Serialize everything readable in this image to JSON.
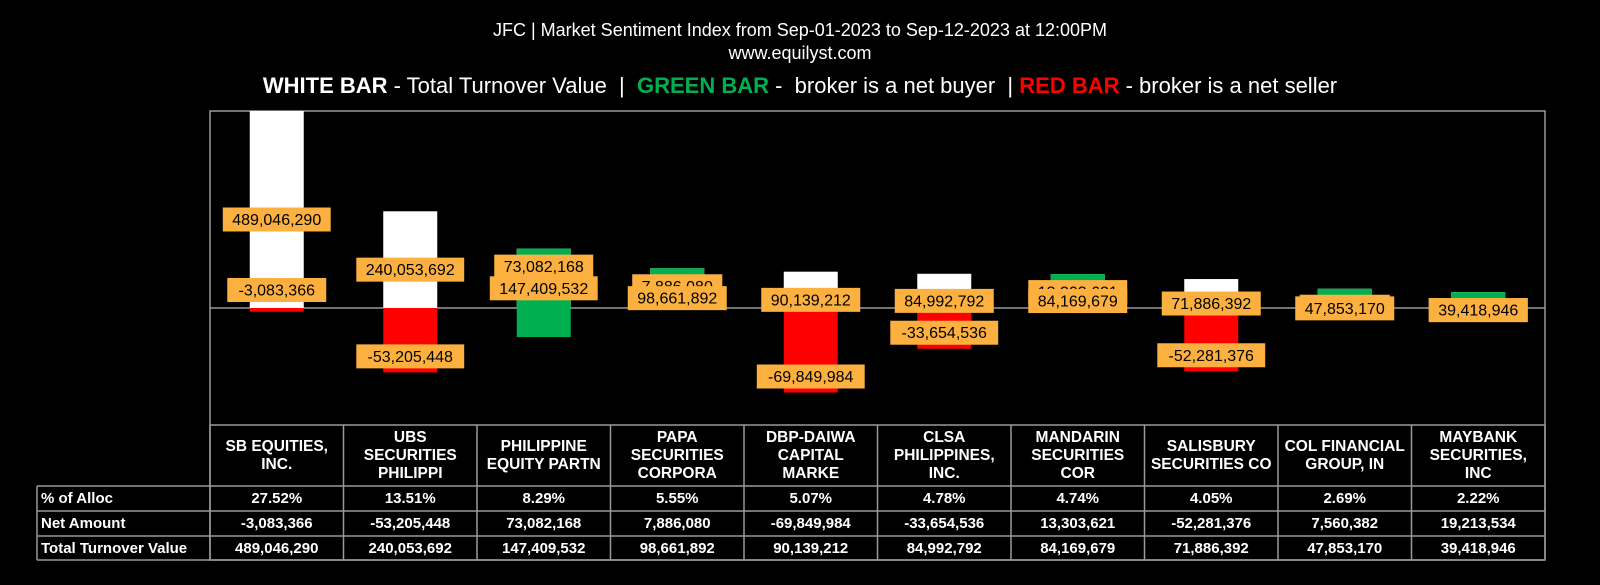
{
  "header": {
    "title_line1": "JFC | Market Sentiment Index from Sep-01-2023 to Sep-12-2023 at 12:00PM",
    "title_line2": "www.equilyst.com"
  },
  "legend": {
    "white_key": "WHITE BAR",
    "white_desc": " - Total Turnover Value  |  ",
    "green_key": "GREEN BAR",
    "green_desc": " -  broker is a net buyer  | ",
    "red_key": "RED BAR",
    "red_desc": " - broker is a net seller",
    "colors": {
      "white": "#ffffff",
      "green": "#00b050",
      "red": "#ff0000"
    }
  },
  "table": {
    "row_labels": [
      "% of Alloc",
      "Net Amount",
      "Total Turnover Value"
    ]
  },
  "chart_data": {
    "type": "bar",
    "categories": [
      [
        "SB EQUITIES,",
        "INC."
      ],
      [
        "UBS",
        "SECURITIES",
        "PHILIPPI"
      ],
      [
        "PHILIPPINE",
        "EQUITY PARTN"
      ],
      [
        "PAPA",
        "SECURITIES",
        "CORPORA"
      ],
      [
        "DBP-DAIWA",
        "CAPITAL",
        "MARKE"
      ],
      [
        "CLSA",
        "PHILIPPINES,",
        "INC."
      ],
      [
        "MANDARIN",
        "SECURITIES",
        "COR"
      ],
      [
        "SALISBURY",
        "SECURITIES CO"
      ],
      [
        "COL FINANCIAL",
        "GROUP, IN"
      ],
      [
        "MAYBANK",
        "SECURITIES,",
        "INC"
      ]
    ],
    "series": [
      {
        "name": "Total Turnover Value",
        "values": [
          489046290,
          240053692,
          147409532,
          98661892,
          90139212,
          84992792,
          84169679,
          71886392,
          47853170,
          39418946
        ],
        "labels": [
          "489,046,290",
          "240,053,692",
          "147,409,532",
          "98,661,892",
          "90,139,212",
          "84,992,792",
          "84,169,679",
          "71,886,392",
          "47,853,170",
          "39,418,946"
        ]
      },
      {
        "name": "Net Amount",
        "values": [
          -3083366,
          -53205448,
          73082168,
          7886080,
          -69849984,
          -33654536,
          13303621,
          -52281376,
          7560382,
          19213534
        ],
        "labels": [
          "-3,083,366",
          "-53,205,448",
          "73,082,168",
          "7,886,080",
          "-69,849,984",
          "-33,654,536",
          "13,303,621",
          "-52,281,376",
          "7,560,382",
          "19,213,534"
        ]
      },
      {
        "name": "% of Alloc",
        "labels": [
          "27.52%",
          "13.51%",
          "8.29%",
          "5.55%",
          "5.07%",
          "4.78%",
          "4.74%",
          "4.05%",
          "2.69%",
          "2.22%"
        ]
      }
    ],
    "colors": {
      "turnover": "#ffffff",
      "buyer": "#00b050",
      "seller": "#ff0000",
      "label_bg": "#fbb040"
    }
  }
}
